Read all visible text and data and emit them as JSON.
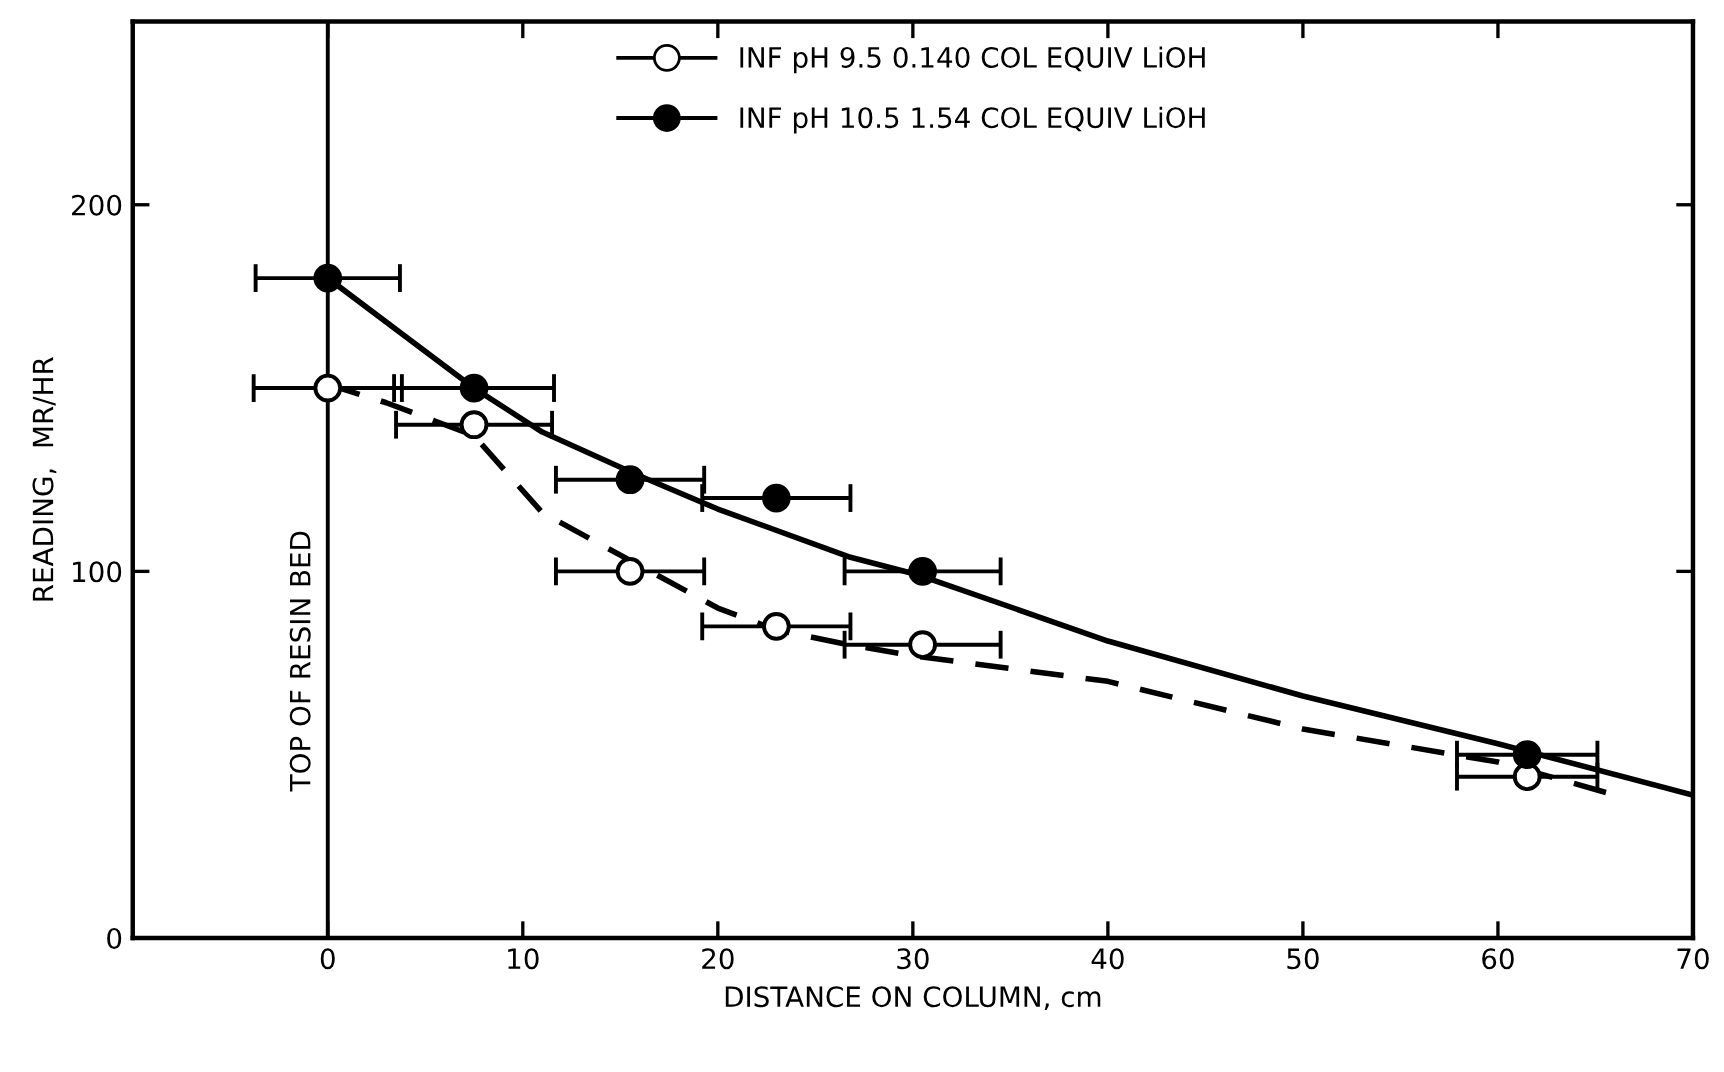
{
  "chart_data": {
    "type": "scatter",
    "xlabel": "DISTANCE ON COLUMN, cm",
    "ylabel": "READING,  MR/HR",
    "xlim": [
      -10,
      70
    ],
    "xticks": [
      0,
      10,
      20,
      30,
      40,
      50,
      60,
      70
    ],
    "ylim": [
      0,
      250
    ],
    "yticks": [
      0,
      100,
      200
    ],
    "grid": false,
    "legend": "top",
    "ref_lines": [
      {
        "axis": "x",
        "value": 0,
        "label": "TOP OF RESIN BED",
        "color": "#000000"
      }
    ],
    "series": [
      {
        "name": "INF pH 9.5 0.140 COL EQUIV LiOH",
        "marker": "circle",
        "color": "#ffffff",
        "x": [
          0,
          7.5,
          15.5,
          23,
          30.5,
          61.5
        ],
        "values": [
          150,
          140,
          100,
          85,
          80,
          44
        ],
        "xerrors": [
          3.8,
          4,
          3.8,
          3.8,
          4,
          3.6
        ]
      },
      {
        "name": "INF pH 10.5 1.54 COL EQUIV LiOH",
        "marker": "circle",
        "color": "#000000",
        "x": [
          0,
          7.5,
          15.5,
          23,
          30.5,
          61.5
        ],
        "values": [
          180,
          150,
          125,
          120,
          100,
          50
        ],
        "xerrors": [
          3.7,
          4.1,
          3.8,
          3.8,
          4,
          3.6
        ]
      },
      {
        "type": "line",
        "line_style": "dashed",
        "color": "#000000",
        "x": [
          0,
          3,
          7.5,
          11,
          15.5,
          20,
          23,
          26.7,
          30,
          40,
          50,
          60,
          66
        ],
        "values": [
          151,
          146,
          137,
          116,
          103,
          90,
          84,
          80,
          77,
          70,
          57,
          48,
          39
        ]
      },
      {
        "type": "line",
        "line_style": "solid",
        "color": "#000000",
        "x": [
          0,
          4,
          7.5,
          11,
          16,
          20,
          26.7,
          30.3,
          40,
          50,
          60,
          70
        ],
        "values": [
          180,
          164,
          150,
          138,
          126,
          117,
          104,
          99,
          81,
          66,
          53,
          39
        ]
      }
    ]
  }
}
